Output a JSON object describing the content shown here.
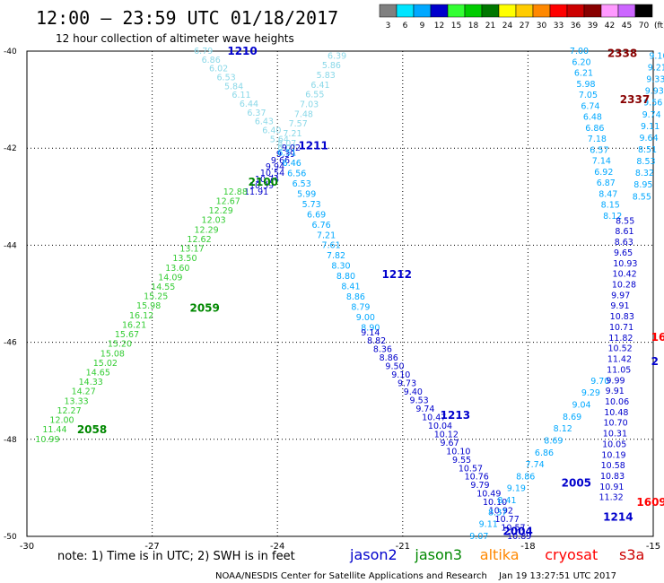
{
  "header": {
    "title": "12:00 – 23:59 UTC 01/18/2017",
    "subtitle": "12 hour collection of altimeter wave heights"
  },
  "footer": {
    "note": "note: 1) Time is in UTC; 2) SWH is in feet",
    "credit": "NOAA/NESDIS Center for Satellite Applications and Research",
    "generated": "Jan 19 13:27:51 UTC 2017"
  },
  "legend": {
    "unit": "(ft)",
    "bins": [
      {
        "label": "3",
        "color": "#808080"
      },
      {
        "label": "6",
        "color": "#00e5ff"
      },
      {
        "label": "9",
        "color": "#00a8ff"
      },
      {
        "label": "12",
        "color": "#0000cc"
      },
      {
        "label": "15",
        "color": "#33ff33"
      },
      {
        "label": "18",
        "color": "#00cc00"
      },
      {
        "label": "21",
        "color": "#007700"
      },
      {
        "label": "24",
        "color": "#ffff00"
      },
      {
        "label": "27",
        "color": "#ffcc00"
      },
      {
        "label": "30",
        "color": "#ff8800"
      },
      {
        "label": "33",
        "color": "#ff0000"
      },
      {
        "label": "36",
        "color": "#cc0000"
      },
      {
        "label": "39",
        "color": "#880000"
      },
      {
        "label": "42",
        "color": "#ff99ff"
      },
      {
        "label": "45",
        "color": "#cc66ff"
      },
      {
        "label": "70",
        "color": "#000000"
      }
    ],
    "satellites": [
      {
        "name": "jason2",
        "color": "#0000cc"
      },
      {
        "name": "jason3",
        "color": "#008800"
      },
      {
        "name": "altika",
        "color": "#ff8800"
      },
      {
        "name": "cryosat",
        "color": "#ff0000"
      },
      {
        "name": "s3a",
        "color": "#cc0000"
      }
    ]
  },
  "chart_data": {
    "type": "scatter",
    "xlim": [
      -30,
      -15
    ],
    "ylim": [
      -50,
      -40
    ],
    "x_ticks": [
      -30,
      -27,
      -24,
      -21,
      -18,
      -15
    ],
    "y_ticks": [
      -40,
      -42,
      -44,
      -46,
      -48,
      -50
    ],
    "grid": true,
    "tracks": [
      {
        "color": "#8ad8e8",
        "label_color": "#0000cc",
        "start": [
          -26.0,
          -40.0
        ],
        "end": [
          -24.0,
          -42.0
        ],
        "values": [
          6.79,
          6.86,
          6.02,
          6.53,
          5.84,
          6.11,
          6.44,
          6.37,
          6.43,
          6.4,
          5.64,
          6.07
        ],
        "time_labels": [
          {
            "text": "1210",
            "at": [
              -25.2,
              -40.0
            ]
          }
        ]
      },
      {
        "color": "#8ad8e8",
        "label_color": "#0000cc",
        "start": [
          -22.8,
          -40.1
        ],
        "end": [
          -24.0,
          -41.9
        ],
        "values": [
          6.39,
          5.86,
          5.83,
          6.41,
          6.55,
          7.03,
          7.48,
          7.57,
          7.21,
          8.07
        ],
        "time_labels": [
          {
            "text": "1211",
            "at": [
              -23.5,
              -41.95
            ]
          }
        ]
      },
      {
        "color": "#0000cc",
        "label_color": "#0000cc",
        "start": [
          -23.9,
          -42.0
        ],
        "end": [
          -24.8,
          -42.9
        ],
        "values": [
          9.02,
          9.39,
          9.66,
          9.94,
          10.54,
          10.74,
          10.39,
          11.91
        ],
        "time_labels": []
      },
      {
        "color": "#33cc33",
        "label_color": "#008800",
        "start": [
          -25.3,
          -42.9
        ],
        "end": [
          -29.8,
          -48.0
        ],
        "values": [
          12.88,
          12.67,
          12.29,
          12.03,
          12.29,
          12.62,
          13.17,
          13.5,
          13.6,
          14.09,
          14.55,
          15.25,
          15.98,
          16.12,
          16.21,
          15.67,
          15.2,
          15.08,
          15.02,
          14.65,
          14.33,
          14.27,
          13.33,
          12.27,
          12.0,
          11.44,
          10.99
        ],
        "time_labels": [
          {
            "text": "2100",
            "at": [
              -24.7,
              -42.7
            ]
          },
          {
            "text": "2059",
            "at": [
              -26.1,
              -45.3
            ]
          },
          {
            "text": "2058",
            "at": [
              -28.8,
              -47.8
            ]
          }
        ]
      },
      {
        "color": "#00a8ff",
        "label_color": "#0000cc",
        "start": [
          -24.0,
          -42.1
        ],
        "end": [
          -22.0,
          -45.7
        ],
        "values": [
          6.51,
          6.46,
          6.56,
          6.53,
          5.99,
          5.73,
          6.69,
          6.76,
          7.21,
          7.61,
          7.82,
          8.3,
          8.8,
          8.41,
          8.86,
          8.79,
          9.0,
          8.9
        ],
        "time_labels": [
          {
            "text": "1212",
            "at": [
              -21.5,
              -44.6
            ]
          }
        ]
      },
      {
        "color": "#0000cc",
        "label_color": "#0000cc",
        "start": [
          -22.0,
          -45.8
        ],
        "end": [
          -18.5,
          -50.0
        ],
        "values": [
          9.14,
          8.82,
          8.36,
          8.86,
          9.5,
          9.1,
          9.73,
          9.4,
          9.53,
          9.74,
          10.47,
          10.04,
          10.12,
          9.67,
          10.1,
          9.55,
          10.57,
          10.76,
          9.79,
          10.49,
          10.1,
          10.92,
          10.77,
          10.57,
          10.89
        ],
        "time_labels": [
          {
            "text": "1213",
            "at": [
              -20.1,
              -47.5
            ]
          },
          {
            "text": "1214",
            "at": [
              -16.2,
              -49.6
            ]
          }
        ]
      },
      {
        "color": "#00a8ff",
        "label_color": "#0000cc",
        "start": [
          -19.4,
          -50.0
        ],
        "end": [
          -16.5,
          -46.8
        ],
        "values": [
          9.07,
          9.11,
          8.37,
          8.41,
          9.19,
          8.86,
          7.74,
          6.86,
          8.69,
          8.12,
          8.69,
          9.04,
          9.29,
          9.7
        ],
        "time_labels": [
          {
            "text": "2004",
            "at": [
              -18.6,
              -49.9
            ]
          },
          {
            "text": "2005",
            "at": [
              -17.2,
              -48.9
            ]
          }
        ]
      },
      {
        "color": "#00a8ff",
        "label_color": "#0000cc",
        "start": [
          -17.0,
          -40.0
        ],
        "end": [
          -16.2,
          -43.4
        ],
        "values": [
          7.0,
          6.2,
          6.21,
          5.98,
          7.05,
          6.74,
          6.48,
          6.86,
          7.18,
          6.57,
          7.14,
          6.92,
          6.87,
          8.47,
          8.15,
          8.12
        ],
        "time_labels": []
      },
      {
        "color": "#0000cc",
        "label_color": "#0000cc",
        "start": [
          -15.9,
          -43.5
        ],
        "end": [
          -16.3,
          -49.2
        ],
        "values": [
          8.55,
          8.61,
          8.63,
          9.65,
          10.93,
          10.42,
          10.28,
          9.97,
          9.91,
          10.83,
          10.71,
          11.82,
          10.52,
          11.42,
          11.05,
          9.99,
          9.91,
          10.06,
          10.48,
          10.7,
          10.31,
          10.05,
          10.19,
          10.58,
          10.83,
          10.91,
          11.32
        ],
        "time_labels": []
      },
      {
        "color": "#00a8ff",
        "label_color": "#0000cc",
        "start": [
          -15.1,
          -40.1
        ],
        "end": [
          -15.5,
          -43.0
        ],
        "values": [
          9.1,
          9.21,
          9.33,
          9.93,
          9.56,
          9.74,
          9.11,
          9.64,
          8.51,
          8.53,
          8.32,
          8.95,
          8.55
        ],
        "time_labels": []
      }
    ],
    "markers": [
      {
        "text": "2338",
        "at": [
          -16.1,
          -40.05
        ],
        "color": "#880000"
      },
      {
        "text": "2337",
        "at": [
          -15.8,
          -41.0
        ],
        "color": "#880000"
      },
      {
        "text": "1609",
        "at": [
          -15.4,
          -49.3
        ],
        "color": "#ff0000"
      },
      {
        "text": "16",
        "at": [
          -15.05,
          -45.9
        ],
        "color": "#ff0000"
      },
      {
        "text": "2",
        "at": [
          -15.05,
          -46.4
        ],
        "color": "#0000cc"
      }
    ]
  }
}
